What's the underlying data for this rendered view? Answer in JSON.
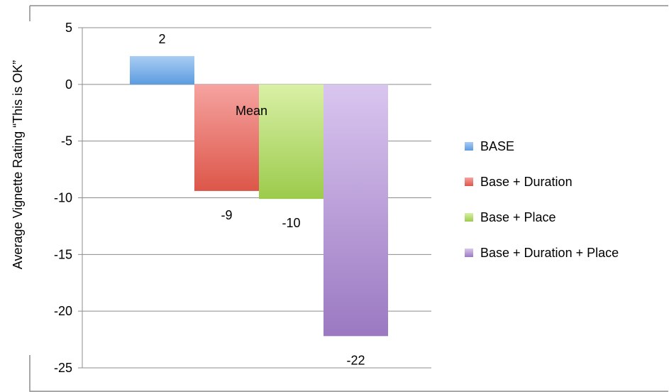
{
  "chart_data": {
    "type": "bar",
    "title": "",
    "xlabel": "",
    "ylabel": "Average Vignette Rating “This is OK”",
    "ylim": [
      -25,
      5
    ],
    "yticks": [
      5,
      0,
      -5,
      -10,
      -15,
      -20,
      -25
    ],
    "grid": true,
    "legend_position": "right",
    "category_annotation": "Mean",
    "series": [
      {
        "name": "BASE",
        "value": 2.5,
        "label": "2",
        "color_top": "#a9cdf3",
        "color_bottom": "#5d9ce0"
      },
      {
        "name": "Base + Duration",
        "value": -9.4,
        "label": "-9",
        "color_top": "#f6a3a0",
        "color_bottom": "#dc5649"
      },
      {
        "name": "Base + Place",
        "value": -10.1,
        "label": "-10",
        "color_top": "#d9f0a6",
        "color_bottom": "#9ccb4c"
      },
      {
        "name": "Base + Duration + Place",
        "value": -22.2,
        "label": "-22",
        "color_top": "#d9c6ef",
        "color_bottom": "#9b79c2"
      }
    ]
  }
}
